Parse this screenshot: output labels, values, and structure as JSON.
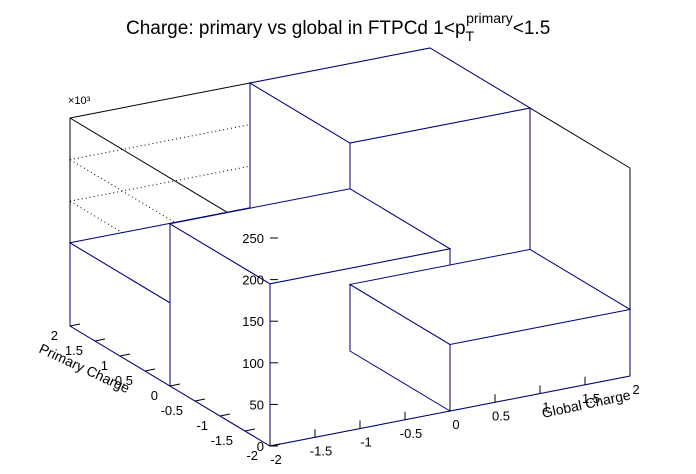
{
  "chart_data": {
    "type": "lego3d",
    "title_parts": {
      "prefix": "Charge: primary vs global in FTPCd 1<p",
      "subscript": "T",
      "superscript": "primary",
      "suffix": "<1.5"
    },
    "xlabel": "Global Charge",
    "ylabel": "Primary Charge",
    "z_multiplier": "×10³",
    "xlim": [
      -2,
      2
    ],
    "ylim": [
      -2,
      2
    ],
    "zlim": [
      0,
      250
    ],
    "x_ticks": [
      "-2",
      "-1.5",
      "-1",
      "-0.5",
      "0",
      "0.5",
      "1",
      "1.5",
      "2"
    ],
    "y_ticks": [
      "-2",
      "-1.5",
      "-1",
      "-0.5",
      "0",
      "0.5",
      "1",
      "1.5",
      "2"
    ],
    "z_ticks": [
      "0",
      "50",
      "100",
      "150",
      "200",
      "250"
    ],
    "grid": true,
    "bars": [
      {
        "global": [
          -2,
          0
        ],
        "primary": [
          -2,
          0
        ],
        "value": 195
      },
      {
        "global": [
          -2,
          0
        ],
        "primary": [
          0,
          2
        ],
        "value": 100
      },
      {
        "global": [
          0,
          2
        ],
        "primary": [
          0,
          2
        ],
        "value": 250
      },
      {
        "global": [
          0,
          2
        ],
        "primary": [
          -2,
          0
        ],
        "value": 80
      }
    ],
    "colors": {
      "bar_edge": "#000080",
      "bar_fill": "#ffffff",
      "frame": "#000000"
    }
  }
}
